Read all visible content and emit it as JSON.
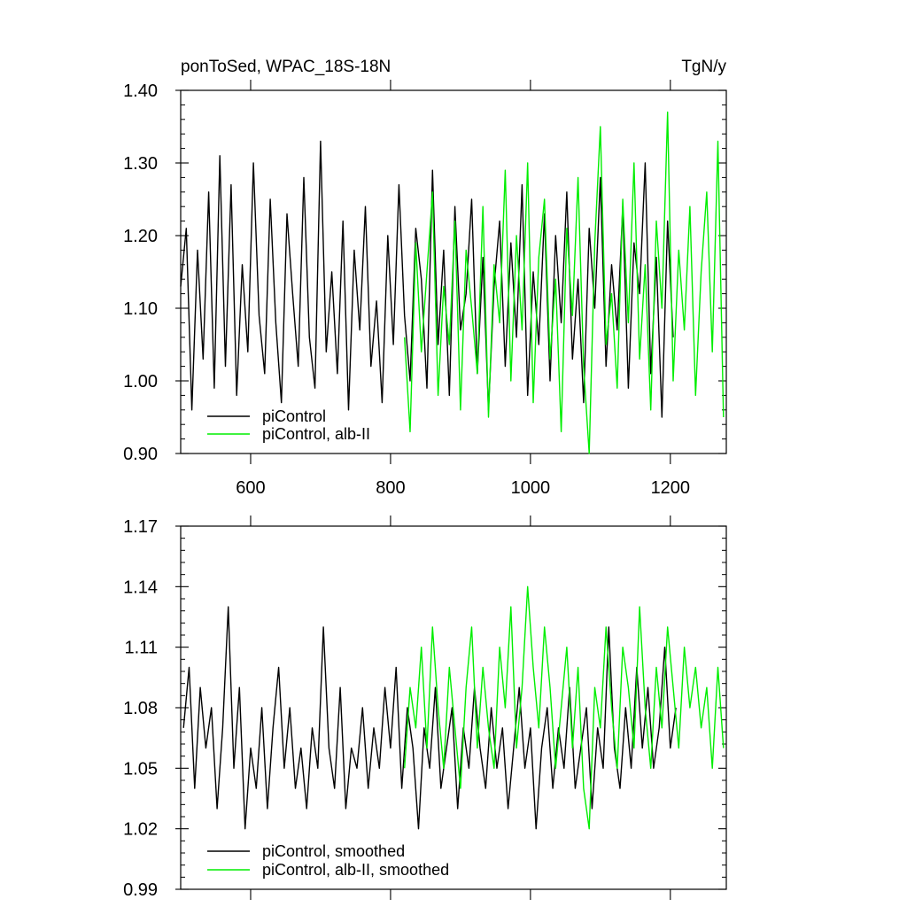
{
  "colors": {
    "control": "#000000",
    "albii": "#00ee00",
    "axis": "#000000",
    "background": "#ffffff"
  },
  "chart_data": [
    {
      "type": "line",
      "title_left": "ponToSed, WPAC_18S-18N",
      "title_right": "TgN/y",
      "xlim": [
        500,
        1280
      ],
      "ylim": [
        0.9,
        1.4
      ],
      "x_ticks": [
        600,
        800,
        1000,
        1200
      ],
      "x_tick_labels": [
        "600",
        "800",
        "1000",
        "1200"
      ],
      "y_ticks": [
        0.9,
        1.0,
        1.1,
        1.2,
        1.3,
        1.4
      ],
      "y_tick_labels": [
        "0.90",
        "1.00",
        "1.10",
        "1.20",
        "1.30",
        "1.40"
      ],
      "grid": false,
      "legend_position": "bottom-left",
      "series": [
        {
          "name": "piControl",
          "color_key": "control",
          "x": [
            500,
            508,
            516,
            524,
            532,
            540,
            548,
            556,
            564,
            572,
            580,
            588,
            596,
            604,
            612,
            620,
            628,
            636,
            644,
            652,
            660,
            668,
            676,
            684,
            692,
            700,
            708,
            716,
            724,
            732,
            740,
            748,
            756,
            764,
            772,
            780,
            788,
            796,
            804,
            812,
            820,
            828,
            836,
            844,
            852,
            860,
            868,
            876,
            884,
            892,
            900,
            908,
            916,
            924,
            932,
            940,
            948,
            956,
            964,
            972,
            980,
            988,
            996,
            1004,
            1012,
            1020,
            1028,
            1036,
            1044,
            1052,
            1060,
            1068,
            1076,
            1084,
            1092,
            1100,
            1108,
            1116,
            1124,
            1132,
            1140,
            1148,
            1156,
            1164,
            1172,
            1180,
            1188,
            1196,
            1204
          ],
          "values": [
            1.13,
            1.21,
            0.96,
            1.18,
            1.03,
            1.26,
            0.99,
            1.31,
            1.02,
            1.27,
            0.98,
            1.16,
            1.04,
            1.3,
            1.09,
            1.01,
            1.25,
            1.08,
            0.97,
            1.23,
            1.12,
            1.02,
            1.28,
            1.06,
            0.99,
            1.33,
            1.04,
            1.15,
            1.01,
            1.22,
            0.96,
            1.18,
            1.07,
            1.24,
            1.02,
            1.11,
            0.97,
            1.2,
            1.05,
            1.27,
            1.09,
            1.0,
            1.21,
            1.14,
            0.99,
            1.29,
            1.05,
            1.18,
            0.98,
            1.24,
            1.07,
            1.12,
            1.25,
            1.01,
            1.17,
            0.96,
            1.13,
            1.22,
            1.02,
            1.19,
            1.06,
            1.27,
            0.98,
            1.15,
            1.05,
            1.23,
            1.0,
            1.2,
            1.08,
            1.26,
            1.03,
            1.14,
            0.97,
            1.21,
            1.1,
            1.28,
            1.02,
            1.16,
            1.07,
            1.24,
            0.99,
            1.19,
            1.12,
            1.3,
            1.01,
            1.17,
            0.95,
            1.22,
            1.06
          ]
        },
        {
          "name": "piControl, alb-II",
          "color_key": "albii",
          "x": [
            820,
            828,
            836,
            844,
            852,
            860,
            868,
            876,
            884,
            892,
            900,
            908,
            916,
            924,
            932,
            940,
            948,
            956,
            964,
            972,
            980,
            988,
            996,
            1004,
            1012,
            1020,
            1028,
            1036,
            1044,
            1052,
            1060,
            1068,
            1076,
            1084,
            1092,
            1100,
            1108,
            1116,
            1124,
            1132,
            1140,
            1148,
            1156,
            1164,
            1172,
            1180,
            1188,
            1196,
            1204,
            1212,
            1220,
            1228,
            1236,
            1244,
            1252,
            1260,
            1268,
            1276
          ],
          "values": [
            1.06,
            0.93,
            1.19,
            1.04,
            1.15,
            1.26,
            0.98,
            1.13,
            1.05,
            1.22,
            0.96,
            1.18,
            1.1,
            1.01,
            1.24,
            0.95,
            1.16,
            1.08,
            1.29,
            1.0,
            1.2,
            1.07,
            1.3,
            0.97,
            1.17,
            1.25,
            1.03,
            1.14,
            0.93,
            1.21,
            1.09,
            1.28,
            1.02,
            0.9,
            1.19,
            1.35,
            1.05,
            1.12,
            0.99,
            1.25,
            1.08,
            1.3,
            1.03,
            1.16,
            0.96,
            1.22,
            1.1,
            1.37,
            1.0,
            1.18,
            1.07,
            1.24,
            0.98,
            1.15,
            1.26,
            1.04,
            1.33,
            0.95
          ]
        }
      ],
      "legend": [
        "piControl",
        "piControl, alb-II"
      ]
    },
    {
      "type": "line",
      "xlim": [
        500,
        1280
      ],
      "ylim": [
        0.99,
        1.17
      ],
      "x_ticks": [
        600,
        800,
        1000,
        1200
      ],
      "y_ticks": [
        0.99,
        1.02,
        1.05,
        1.08,
        1.11,
        1.14,
        1.17
      ],
      "y_tick_labels": [
        "0.99",
        "1.02",
        "1.05",
        "1.08",
        "1.11",
        "1.14",
        "1.17"
      ],
      "grid": false,
      "legend_position": "bottom-left",
      "series": [
        {
          "name": "piControl, smoothed",
          "color_key": "control",
          "x": [
            504,
            512,
            520,
            528,
            536,
            544,
            552,
            560,
            568,
            576,
            584,
            592,
            600,
            608,
            616,
            624,
            632,
            640,
            648,
            656,
            664,
            672,
            680,
            688,
            696,
            704,
            712,
            720,
            728,
            736,
            744,
            752,
            760,
            768,
            776,
            784,
            792,
            800,
            808,
            816,
            824,
            832,
            840,
            848,
            856,
            864,
            872,
            880,
            888,
            896,
            904,
            912,
            920,
            928,
            936,
            944,
            952,
            960,
            968,
            976,
            984,
            992,
            1000,
            1008,
            1016,
            1024,
            1032,
            1040,
            1048,
            1056,
            1064,
            1072,
            1080,
            1088,
            1096,
            1104,
            1112,
            1120,
            1128,
            1136,
            1144,
            1152,
            1160,
            1168,
            1176,
            1184,
            1192,
            1200,
            1208
          ],
          "values": [
            1.07,
            1.1,
            1.04,
            1.09,
            1.06,
            1.08,
            1.03,
            1.07,
            1.13,
            1.05,
            1.09,
            1.02,
            1.06,
            1.04,
            1.08,
            1.03,
            1.07,
            1.1,
            1.05,
            1.08,
            1.04,
            1.06,
            1.03,
            1.07,
            1.05,
            1.12,
            1.06,
            1.04,
            1.09,
            1.03,
            1.06,
            1.05,
            1.08,
            1.04,
            1.07,
            1.05,
            1.09,
            1.06,
            1.1,
            1.04,
            1.08,
            1.06,
            1.02,
            1.07,
            1.05,
            1.09,
            1.04,
            1.06,
            1.08,
            1.03,
            1.07,
            1.05,
            1.09,
            1.06,
            1.04,
            1.08,
            1.05,
            1.07,
            1.03,
            1.06,
            1.09,
            1.05,
            1.07,
            1.02,
            1.06,
            1.08,
            1.04,
            1.07,
            1.05,
            1.09,
            1.04,
            1.06,
            1.08,
            1.03,
            1.07,
            1.05,
            1.12,
            1.06,
            1.04,
            1.08,
            1.05,
            1.1,
            1.06,
            1.09,
            1.05,
            1.07,
            1.11,
            1.06,
            1.08
          ]
        },
        {
          "name": "piControl, alb-II, smoothed",
          "color_key": "albii",
          "x": [
            820,
            828,
            836,
            844,
            852,
            860,
            868,
            876,
            884,
            892,
            900,
            908,
            916,
            924,
            932,
            940,
            948,
            956,
            964,
            972,
            980,
            988,
            996,
            1004,
            1012,
            1020,
            1028,
            1036,
            1044,
            1052,
            1060,
            1068,
            1076,
            1084,
            1092,
            1100,
            1108,
            1116,
            1124,
            1132,
            1140,
            1148,
            1156,
            1164,
            1172,
            1180,
            1188,
            1196,
            1204,
            1212,
            1220,
            1228,
            1236,
            1244,
            1252,
            1260,
            1268,
            1276
          ],
          "values": [
            1.05,
            1.09,
            1.07,
            1.11,
            1.06,
            1.12,
            1.08,
            1.05,
            1.1,
            1.07,
            1.04,
            1.09,
            1.12,
            1.06,
            1.1,
            1.07,
            1.05,
            1.11,
            1.08,
            1.13,
            1.06,
            1.09,
            1.14,
            1.1,
            1.07,
            1.12,
            1.09,
            1.05,
            1.08,
            1.11,
            1.06,
            1.1,
            1.04,
            1.02,
            1.09,
            1.07,
            1.12,
            1.08,
            1.05,
            1.11,
            1.09,
            1.06,
            1.13,
            1.08,
            1.05,
            1.1,
            1.07,
            1.12,
            1.09,
            1.06,
            1.11,
            1.08,
            1.1,
            1.07,
            1.09,
            1.05,
            1.1,
            1.06
          ]
        }
      ],
      "legend": [
        "piControl, smoothed",
        "piControl, alb-II, smoothed"
      ]
    }
  ]
}
